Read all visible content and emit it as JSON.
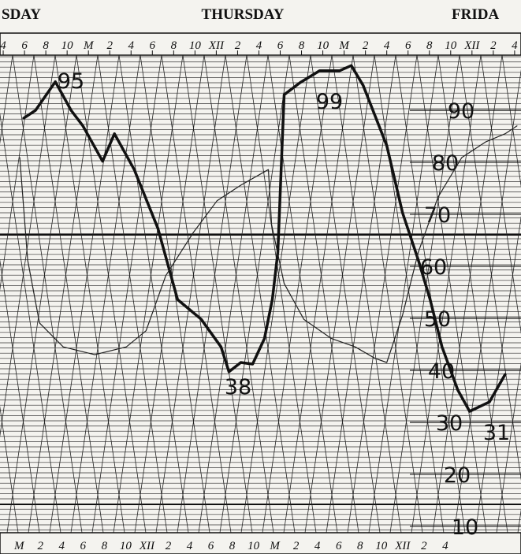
{
  "chart_data": {
    "type": "line",
    "day_labels": [
      "SDAY",
      "THURSDAY",
      "FRIDA"
    ],
    "xlim": [
      -8.3,
      40.6
    ],
    "ylim": [
      8,
      100
    ],
    "xticks": [
      {
        "value": -8,
        "label": "4"
      },
      {
        "value": -6,
        "label": "6"
      },
      {
        "value": -4,
        "label": "8"
      },
      {
        "value": -2,
        "label": "10"
      },
      {
        "value": 0,
        "label": "M"
      },
      2,
      4,
      6,
      8,
      10,
      {
        "value": 12,
        "label": "XII"
      },
      {
        "value": 14,
        "label": "2"
      },
      {
        "value": 16,
        "label": "4"
      },
      {
        "value": 18,
        "label": "6"
      },
      {
        "value": 20,
        "label": "8"
      },
      {
        "value": 22,
        "label": "10"
      },
      {
        "value": 24,
        "label": "M"
      },
      {
        "value": 26,
        "label": "2"
      },
      {
        "value": 28,
        "label": "4"
      },
      {
        "value": 30,
        "label": "6"
      },
      {
        "value": 32,
        "label": "8"
      },
      {
        "value": 34,
        "label": "10"
      },
      {
        "value": 36,
        "label": "XII"
      },
      {
        "value": 38,
        "label": "2"
      },
      {
        "value": 40,
        "label": "4"
      }
    ],
    "yticks": [
      10,
      20,
      30,
      40,
      50,
      60,
      70,
      80,
      90
    ],
    "grid": true,
    "series": [
      {
        "color": "#111111",
        "width": 3.5,
        "x": [
          -6.07,
          -4.96,
          -3.11,
          -1.63,
          -0.52,
          1.33,
          2.44,
          4.3,
          6.52,
          8.37,
          10.59,
          12.44,
          13.19,
          14.3,
          15.41,
          16.52,
          17.26,
          17.78,
          18.37,
          19.85,
          21.7,
          23.56,
          24.67,
          25.78,
          28,
          29.48,
          30.96,
          32.07,
          33.19,
          34.67,
          35.78,
          37.63,
          39.11
        ],
        "values": [
          88.5,
          90,
          95.5,
          90,
          87,
          80.2,
          85.5,
          78.6,
          67.3,
          53.6,
          49.8,
          44.5,
          39.7,
          41.5,
          41.2,
          46.1,
          53.6,
          62.7,
          93,
          95.3,
          97.6,
          97.6,
          98.6,
          94.8,
          83.2,
          70.3,
          61.2,
          53.6,
          44.5,
          36.2,
          32.1,
          33.9,
          39.2
        ]
      },
      {
        "color": "#222222",
        "width": 1.2,
        "x": [
          -6.44,
          -5.7,
          -4.59,
          -2.37,
          0.59,
          3.56,
          5.41,
          7.26,
          9.85,
          12.07,
          14.3,
          16.89,
          17.19,
          18.37,
          20.22,
          22.81,
          25.04,
          26.89,
          28,
          29.48,
          30.96,
          32.81,
          35.04,
          37.26,
          39.11,
          40.22
        ],
        "values": [
          80.9,
          61.2,
          49.1,
          44.5,
          43,
          44.5,
          47.6,
          58.2,
          66.5,
          72.6,
          75.6,
          78.6,
          68,
          56.7,
          49.8,
          46.1,
          44.5,
          42.3,
          41.5,
          50.6,
          62.7,
          73.3,
          80.9,
          83.9,
          85.5,
          87
        ]
      }
    ],
    "annotations": [
      "95",
      "99",
      "38",
      "31"
    ]
  }
}
